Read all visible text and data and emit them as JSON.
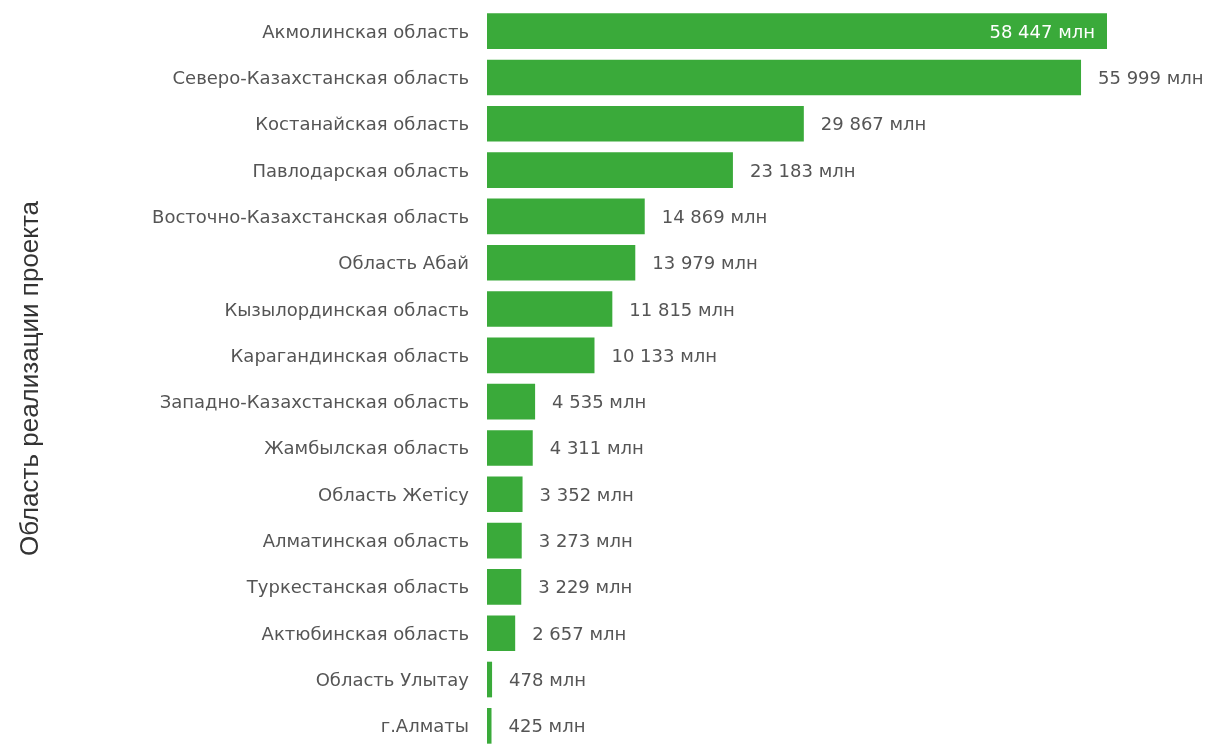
{
  "chart_data": {
    "type": "bar",
    "orientation": "horizontal",
    "ylabel": "Область реализации проекта",
    "categories": [
      "Акмолинская область",
      "Северо-Казахстанская область",
      "Костанайская область",
      "Павлодарская область",
      "Восточно-Казахстанская область",
      "Область Абай",
      "Кызылординская область",
      "Карагандинская область",
      "Западно-Казахстанская область",
      "Жамбылская область",
      "Область Жетісу",
      "Алматинская область",
      "Туркестанская область",
      "Актюбинская область",
      "Область Улытау",
      "г.Алматы"
    ],
    "values": [
      58447,
      55999,
      29867,
      23183,
      14869,
      13979,
      11815,
      10133,
      4535,
      4311,
      3352,
      3273,
      3229,
      2657,
      478,
      425
    ],
    "value_labels": [
      "58 447 млн",
      "55 999 млн",
      "29 867 млн",
      "23 183 млн",
      "14 869 млн",
      "13 979 млн",
      "11 815 млн",
      "10 133 млн",
      "4 535 млн",
      "4 311 млн",
      "3 352 млн",
      "3 273 млн",
      "3 229 млн",
      "2 657 млн",
      "478 млн",
      "425 млн"
    ],
    "color": "#3aaa3a"
  }
}
